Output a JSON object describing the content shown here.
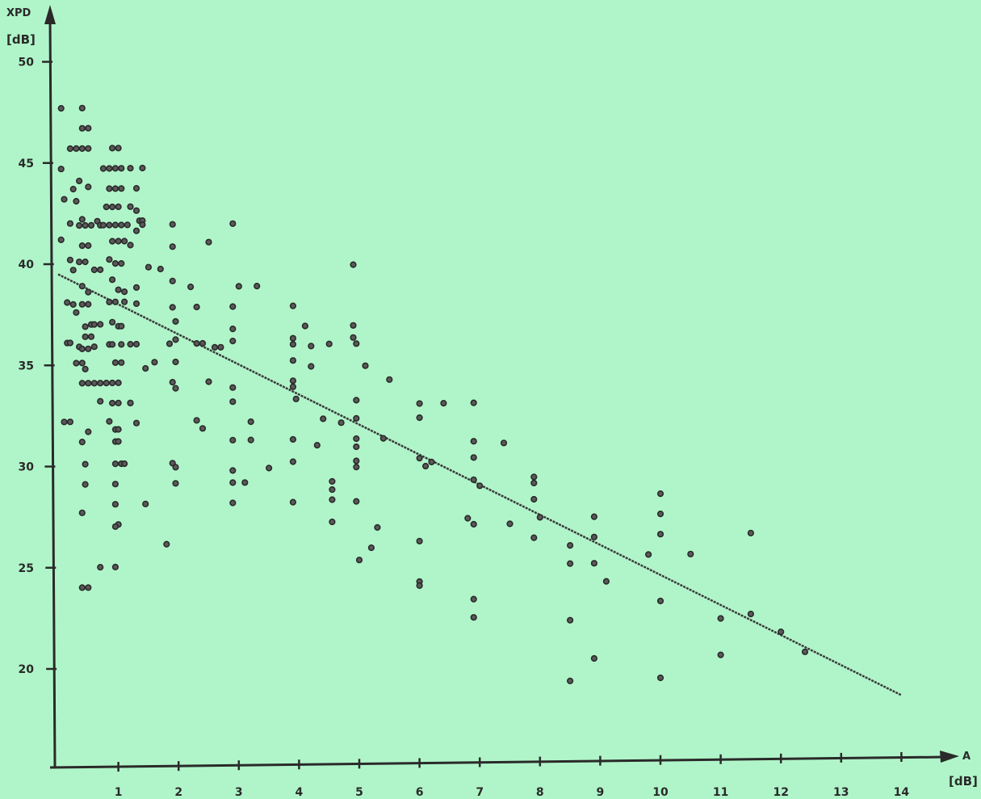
{
  "chart_data": {
    "type": "scatter",
    "title": "",
    "xlabel": "A",
    "xunit": "[dB]",
    "ylabel": "XPD",
    "yunit": "[dB]",
    "xlim": [
      0,
      14
    ],
    "ylim": [
      15,
      50
    ],
    "x_ticks": [
      "1",
      "2",
      "3",
      "4",
      "5",
      "6",
      "7",
      "8",
      "9",
      "10",
      "11",
      "12",
      "13",
      "14"
    ],
    "y_ticks": [
      "20",
      "25",
      "30",
      "35",
      "40",
      "45",
      "50"
    ],
    "grid": false,
    "regression_line": {
      "x": [
        0,
        14
      ],
      "y": [
        39.5,
        18.2
      ]
    },
    "series": [
      {
        "points": [
          [
            0.05,
            47.7
          ],
          [
            0.4,
            47.7
          ],
          [
            0.05,
            44.7
          ],
          [
            0.4,
            46.7
          ],
          [
            0.5,
            46.7
          ],
          [
            0.2,
            45.7
          ],
          [
            0.3,
            45.7
          ],
          [
            0.4,
            45.7
          ],
          [
            0.5,
            45.7
          ],
          [
            0.25,
            43.7
          ],
          [
            0.35,
            44.1
          ],
          [
            0.5,
            43.8
          ],
          [
            0.1,
            43.2
          ],
          [
            0.3,
            43.1
          ],
          [
            0.4,
            42.2
          ],
          [
            0.2,
            42.0
          ],
          [
            0.35,
            41.9
          ],
          [
            0.45,
            41.9
          ],
          [
            0.55,
            41.9
          ],
          [
            0.65,
            42.1
          ],
          [
            0.7,
            41.9
          ],
          [
            0.05,
            41.2
          ],
          [
            0.4,
            40.9
          ],
          [
            0.5,
            40.9
          ],
          [
            0.2,
            40.2
          ],
          [
            0.35,
            40.1
          ],
          [
            0.45,
            40.1
          ],
          [
            0.25,
            39.7
          ],
          [
            0.6,
            39.7
          ],
          [
            0.7,
            39.7
          ],
          [
            0.4,
            38.9
          ],
          [
            0.5,
            38.6
          ],
          [
            0.15,
            38.1
          ],
          [
            0.25,
            38.0
          ],
          [
            0.4,
            38.0
          ],
          [
            0.5,
            38.0
          ],
          [
            0.3,
            37.6
          ],
          [
            0.55,
            37.0
          ],
          [
            0.6,
            37.0
          ],
          [
            0.7,
            37.0
          ],
          [
            0.45,
            36.9
          ],
          [
            0.45,
            36.4
          ],
          [
            0.55,
            36.4
          ],
          [
            0.15,
            36.1
          ],
          [
            0.2,
            36.1
          ],
          [
            0.35,
            35.9
          ],
          [
            0.4,
            35.8
          ],
          [
            0.5,
            35.8
          ],
          [
            0.6,
            35.9
          ],
          [
            0.3,
            35.1
          ],
          [
            0.4,
            35.1
          ],
          [
            0.45,
            34.8
          ],
          [
            0.4,
            34.1
          ],
          [
            0.5,
            34.1
          ],
          [
            0.6,
            34.1
          ],
          [
            0.7,
            34.1
          ],
          [
            0.8,
            34.1
          ],
          [
            0.9,
            34.1
          ],
          [
            1.0,
            34.1
          ],
          [
            0.1,
            32.2
          ],
          [
            0.2,
            32.2
          ],
          [
            0.5,
            31.7
          ],
          [
            0.4,
            31.2
          ],
          [
            0.45,
            30.1
          ],
          [
            0.45,
            29.1
          ],
          [
            0.4,
            27.7
          ],
          [
            0.4,
            24.0
          ],
          [
            0.5,
            24.0
          ],
          [
            0.7,
            25.0
          ],
          [
            0.95,
            25.0
          ],
          [
            0.7,
            33.2
          ],
          [
            0.9,
            33.1
          ],
          [
            1.0,
            33.1
          ],
          [
            1.2,
            33.1
          ],
          [
            0.85,
            32.2
          ],
          [
            0.95,
            31.8
          ],
          [
            1.0,
            31.8
          ],
          [
            0.95,
            31.2
          ],
          [
            1.0,
            31.2
          ],
          [
            0.95,
            30.1
          ],
          [
            1.05,
            30.1
          ],
          [
            1.1,
            30.1
          ],
          [
            0.95,
            29.1
          ],
          [
            0.95,
            28.1
          ],
          [
            1.0,
            27.1
          ],
          [
            0.95,
            27.0
          ],
          [
            0.9,
            45.7
          ],
          [
            1.0,
            45.7
          ],
          [
            0.75,
            44.7
          ],
          [
            0.85,
            44.7
          ],
          [
            0.95,
            44.7
          ],
          [
            1.05,
            44.7
          ],
          [
            0.85,
            43.7
          ],
          [
            0.95,
            43.7
          ],
          [
            1.05,
            43.7
          ],
          [
            0.8,
            42.8
          ],
          [
            0.9,
            42.8
          ],
          [
            1.0,
            42.8
          ],
          [
            0.75,
            41.9
          ],
          [
            0.85,
            41.9
          ],
          [
            0.95,
            41.9
          ],
          [
            1.05,
            41.9
          ],
          [
            1.15,
            41.9
          ],
          [
            0.9,
            41.1
          ],
          [
            1.0,
            41.1
          ],
          [
            1.1,
            41.1
          ],
          [
            0.85,
            40.2
          ],
          [
            0.95,
            40.0
          ],
          [
            1.05,
            40.0
          ],
          [
            0.9,
            39.2
          ],
          [
            1.0,
            38.7
          ],
          [
            1.1,
            38.6
          ],
          [
            0.85,
            38.1
          ],
          [
            0.95,
            38.1
          ],
          [
            1.1,
            38.1
          ],
          [
            0.9,
            37.1
          ],
          [
            1.0,
            36.9
          ],
          [
            1.05,
            36.9
          ],
          [
            0.85,
            36.0
          ],
          [
            0.9,
            36.0
          ],
          [
            1.05,
            36.0
          ],
          [
            0.95,
            35.1
          ],
          [
            1.05,
            35.1
          ],
          [
            1.2,
            44.7
          ],
          [
            1.4,
            44.7
          ],
          [
            1.3,
            43.7
          ],
          [
            1.2,
            42.8
          ],
          [
            1.3,
            42.6
          ],
          [
            1.35,
            42.1
          ],
          [
            1.4,
            42.1
          ],
          [
            1.3,
            41.6
          ],
          [
            1.4,
            41.9
          ],
          [
            1.2,
            40.9
          ],
          [
            1.3,
            38.8
          ],
          [
            1.3,
            38.0
          ],
          [
            1.2,
            36.0
          ],
          [
            1.3,
            36.0
          ],
          [
            1.2,
            33.1
          ],
          [
            1.3,
            32.1
          ],
          [
            1.45,
            34.8
          ],
          [
            1.45,
            28.1
          ],
          [
            1.5,
            39.8
          ],
          [
            1.7,
            39.7
          ],
          [
            1.6,
            35.1
          ],
          [
            1.8,
            26.1
          ],
          [
            1.9,
            41.9
          ],
          [
            1.9,
            40.8
          ],
          [
            1.9,
            39.1
          ],
          [
            1.9,
            37.8
          ],
          [
            1.95,
            37.1
          ],
          [
            1.95,
            36.2
          ],
          [
            1.85,
            36.0
          ],
          [
            1.95,
            35.1
          ],
          [
            1.9,
            34.1
          ],
          [
            1.95,
            33.8
          ],
          [
            1.9,
            30.1
          ],
          [
            1.95,
            29.9
          ],
          [
            1.95,
            29.1
          ],
          [
            2.2,
            38.8
          ],
          [
            2.3,
            37.8
          ],
          [
            2.3,
            36.0
          ],
          [
            2.4,
            36.0
          ],
          [
            2.5,
            41.0
          ],
          [
            2.5,
            34.1
          ],
          [
            2.3,
            32.2
          ],
          [
            2.4,
            31.8
          ],
          [
            2.6,
            35.8
          ],
          [
            2.7,
            35.8
          ],
          [
            2.9,
            41.9
          ],
          [
            2.9,
            37.8
          ],
          [
            2.9,
            36.7
          ],
          [
            2.9,
            36.1
          ],
          [
            2.9,
            33.8
          ],
          [
            2.9,
            33.1
          ],
          [
            2.9,
            31.2
          ],
          [
            3.0,
            38.8
          ],
          [
            2.9,
            29.7
          ],
          [
            2.9,
            29.1
          ],
          [
            2.9,
            28.1
          ],
          [
            3.1,
            29.1
          ],
          [
            3.2,
            32.1
          ],
          [
            3.2,
            31.2
          ],
          [
            3.3,
            38.8
          ],
          [
            3.5,
            29.8
          ],
          [
            3.9,
            37.8
          ],
          [
            3.9,
            36.2
          ],
          [
            3.9,
            35.9
          ],
          [
            3.9,
            35.1
          ],
          [
            3.9,
            34.1
          ],
          [
            3.9,
            33.8
          ],
          [
            3.95,
            33.2
          ],
          [
            3.9,
            31.2
          ],
          [
            3.9,
            30.1
          ],
          [
            3.9,
            28.1
          ],
          [
            4.1,
            36.8
          ],
          [
            4.2,
            35.8
          ],
          [
            4.2,
            34.8
          ],
          [
            4.3,
            30.9
          ],
          [
            4.4,
            32.2
          ],
          [
            4.5,
            35.9
          ],
          [
            4.55,
            29.1
          ],
          [
            4.55,
            28.7
          ],
          [
            4.55,
            28.2
          ],
          [
            4.55,
            27.1
          ],
          [
            4.7,
            32.0
          ],
          [
            4.9,
            39.8
          ],
          [
            4.9,
            36.8
          ],
          [
            4.9,
            36.2
          ],
          [
            4.95,
            35.9
          ],
          [
            4.95,
            33.1
          ],
          [
            4.95,
            32.2
          ],
          [
            4.95,
            31.2
          ],
          [
            4.95,
            30.8
          ],
          [
            4.95,
            30.1
          ],
          [
            4.95,
            29.8
          ],
          [
            4.95,
            28.1
          ],
          [
            5.0,
            25.2
          ],
          [
            5.1,
            34.8
          ],
          [
            5.2,
            25.8
          ],
          [
            5.3,
            26.8
          ],
          [
            5.4,
            31.2
          ],
          [
            5.5,
            34.1
          ],
          [
            6.0,
            32.9
          ],
          [
            6.0,
            32.2
          ],
          [
            6.0,
            30.2
          ],
          [
            6.1,
            29.8
          ],
          [
            6.2,
            30.0
          ],
          [
            6.0,
            26.1
          ],
          [
            6.0,
            24.1
          ],
          [
            6.0,
            23.9
          ],
          [
            6.4,
            32.9
          ],
          [
            6.9,
            32.9
          ],
          [
            6.9,
            31.0
          ],
          [
            6.9,
            30.2
          ],
          [
            6.9,
            29.1
          ],
          [
            7.0,
            28.8
          ],
          [
            6.8,
            27.2
          ],
          [
            6.9,
            26.9
          ],
          [
            6.9,
            23.2
          ],
          [
            6.9,
            22.3
          ],
          [
            7.4,
            30.9
          ],
          [
            7.5,
            26.9
          ],
          [
            7.9,
            29.2
          ],
          [
            7.9,
            28.9
          ],
          [
            7.9,
            28.1
          ],
          [
            8.0,
            27.2
          ],
          [
            7.9,
            26.2
          ],
          [
            8.5,
            25.8
          ],
          [
            8.5,
            24.9
          ],
          [
            8.5,
            22.1
          ],
          [
            8.5,
            19.1
          ],
          [
            8.9,
            27.2
          ],
          [
            8.9,
            26.2
          ],
          [
            8.9,
            24.9
          ],
          [
            9.1,
            24.0
          ],
          [
            8.9,
            20.2
          ],
          [
            9.8,
            25.3
          ],
          [
            10.0,
            28.3
          ],
          [
            10.0,
            27.3
          ],
          [
            10.0,
            26.3
          ],
          [
            10.0,
            23.0
          ],
          [
            10.0,
            19.2
          ],
          [
            10.5,
            25.3
          ],
          [
            11.0,
            22.1
          ],
          [
            11.0,
            20.3
          ],
          [
            11.5,
            26.3
          ],
          [
            11.5,
            22.3
          ],
          [
            12.0,
            21.4
          ],
          [
            12.4,
            20.4
          ]
        ]
      }
    ]
  }
}
